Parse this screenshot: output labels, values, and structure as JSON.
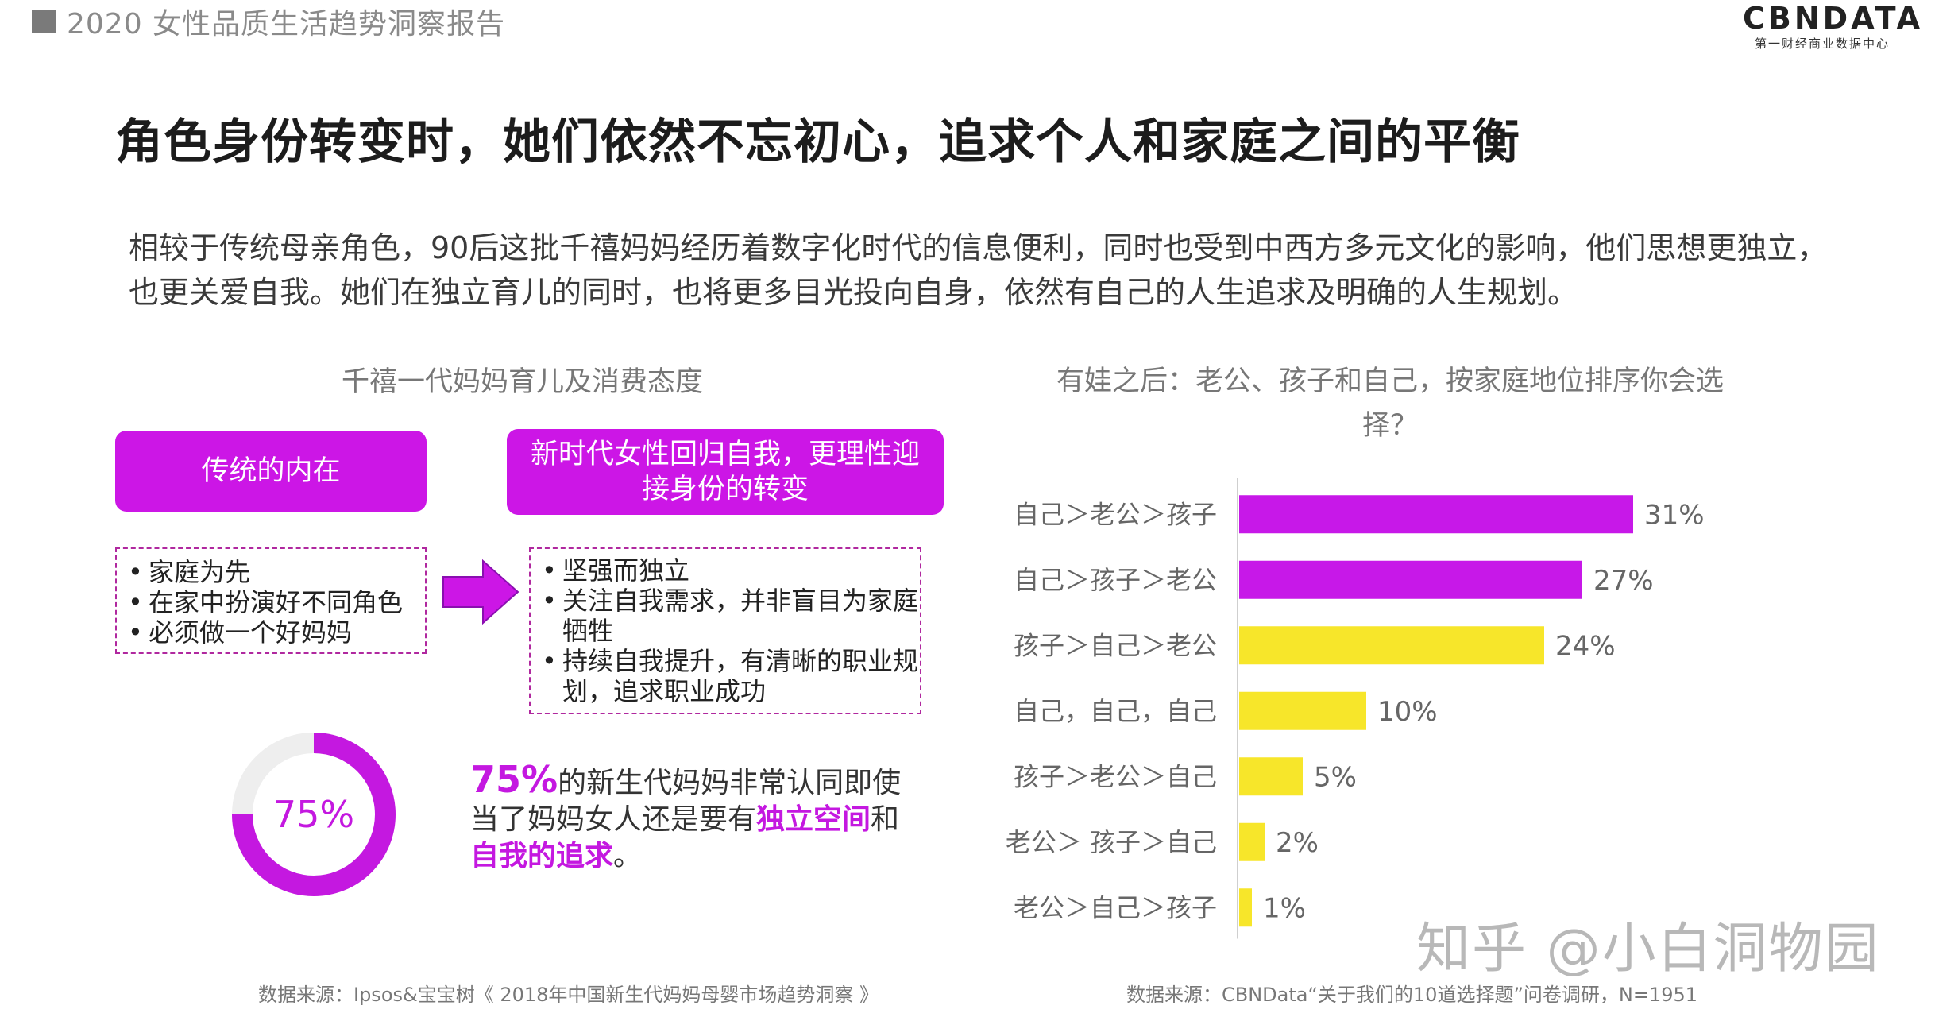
{
  "header": {
    "report_title": "2020 女性品质生活趋势洞察报告",
    "logo_main": "CBNDATA",
    "logo_sub": "第一财经商业数据中心"
  },
  "headline": "角色身份转变时，她们依然不忘初心，追求个人和家庭之间的平衡",
  "intro": "相较于传统母亲角色，90后这批千禧妈妈经历着数字化时代的信息便利，同时也受到中西方多元文化的影响，他们思想更独立，也更关爱自我。她们在独立育儿的同时，也将更多目光投向自身，依然有自己的人生追求及明确的人生规划。",
  "left": {
    "title": "千禧一代妈妈育儿及消费态度",
    "traditional": {
      "label": "传统的内在",
      "items": [
        "家庭为先",
        "在家中扮演好不同角色",
        "必须做一个好妈妈"
      ]
    },
    "modern": {
      "label": "新时代女性回归自我，更理性迎接身份的转变",
      "items": [
        "坚强而独立",
        "关注自我需求，并非盲目为家庭牺牲",
        "持续自我提升，有清晰的职业规划，追求职业成功"
      ]
    },
    "stat": {
      "value": 0.75,
      "donut_label": "75%",
      "pct": "75%",
      "text_a": "的新生代妈妈非常认同即使当了妈妈女人还是要有",
      "hl_1": "独立空间",
      "text_b": "和",
      "hl_2": "自我的追求",
      "text_c": "。"
    },
    "source": "数据来源：Ipsos&宝宝树《 2018年中国新生代妈妈母婴市场趋势洞察 》"
  },
  "right": {
    "title": "有娃之后：老公、孩子和自己，按家庭地位排序你会选择？",
    "source": "数据来源：CBNData“关于我们的10道选择题”问卷调研，N=1951"
  },
  "chart_data": {
    "type": "bar",
    "orientation": "horizontal",
    "categories": [
      "自己＞老公＞孩子",
      "自己＞孩子＞老公",
      "孩子＞自己＞老公",
      "自己，自己，自己",
      "孩子＞老公＞自己",
      "老公＞ 孩子＞自己",
      "老公＞自己＞孩子"
    ],
    "values": [
      31,
      27,
      24,
      10,
      5,
      2,
      1
    ],
    "value_labels": [
      "31%",
      "27%",
      "24%",
      "10%",
      "5%",
      "2%",
      "1%"
    ],
    "bar_colors": [
      "#c718e8",
      "#c718e8",
      "#f7e62a",
      "#f7e62a",
      "#f7e62a",
      "#f7e62a",
      "#f7e62a"
    ],
    "xlim": [
      0,
      35
    ],
    "grid": false
  },
  "colors": {
    "accent_purple": "#cc16e6",
    "accent_yellow": "#f7e62a"
  },
  "watermark": "知乎 @小白洞物园"
}
